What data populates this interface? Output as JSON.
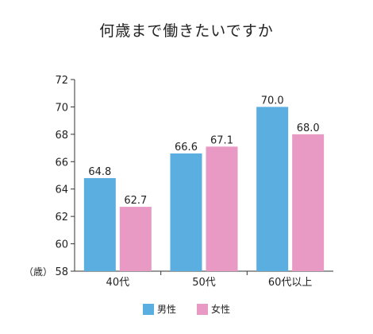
{
  "chart_data": {
    "type": "bar",
    "title": "何歳まで働きたいですか",
    "unit_label": "（歳）",
    "categories": [
      "40代",
      "50代",
      "60代以上"
    ],
    "series": [
      {
        "name": "男性",
        "values": [
          64.8,
          66.6,
          70.0
        ],
        "labels": [
          "64.8",
          "66.6",
          "70.0"
        ],
        "color": "#5aaee0"
      },
      {
        "name": "女性",
        "values": [
          62.7,
          67.1,
          68.0
        ],
        "labels": [
          "62.7",
          "67.1",
          "68.0"
        ],
        "color": "#e89ac4"
      }
    ],
    "ylim": [
      58,
      72
    ],
    "yticks": [
      "58",
      "60",
      "62",
      "64",
      "66",
      "68",
      "70",
      "72"
    ],
    "grid": false,
    "legend": "bottom"
  }
}
